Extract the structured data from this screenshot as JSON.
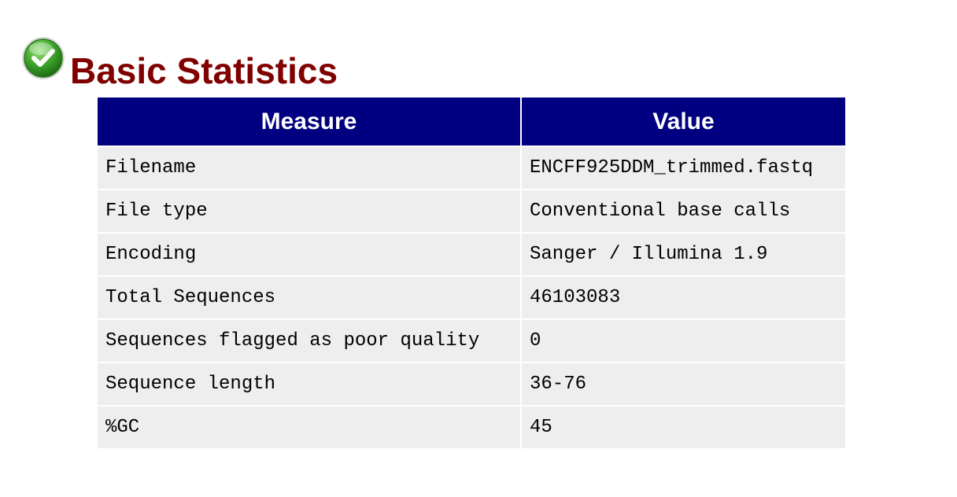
{
  "module": {
    "title": "Basic Statistics",
    "status": "pass",
    "status_icon": "check-circle-icon",
    "status_color": "#3a9a2a"
  },
  "table": {
    "header_color": "#000080",
    "row_color": "#eeeeee",
    "title_color": "#800000",
    "headers": {
      "measure": "Measure",
      "value": "Value"
    },
    "rows": [
      {
        "measure": "Filename",
        "value": "ENCFF925DDM_trimmed.fastq"
      },
      {
        "measure": "File type",
        "value": "Conventional base calls"
      },
      {
        "measure": "Encoding",
        "value": "Sanger / Illumina 1.9"
      },
      {
        "measure": "Total Sequences",
        "value": "46103083"
      },
      {
        "measure": "Sequences flagged as poor quality",
        "value": "0"
      },
      {
        "measure": "Sequence length",
        "value": "36-76"
      },
      {
        "measure": "%GC",
        "value": "45"
      }
    ]
  }
}
